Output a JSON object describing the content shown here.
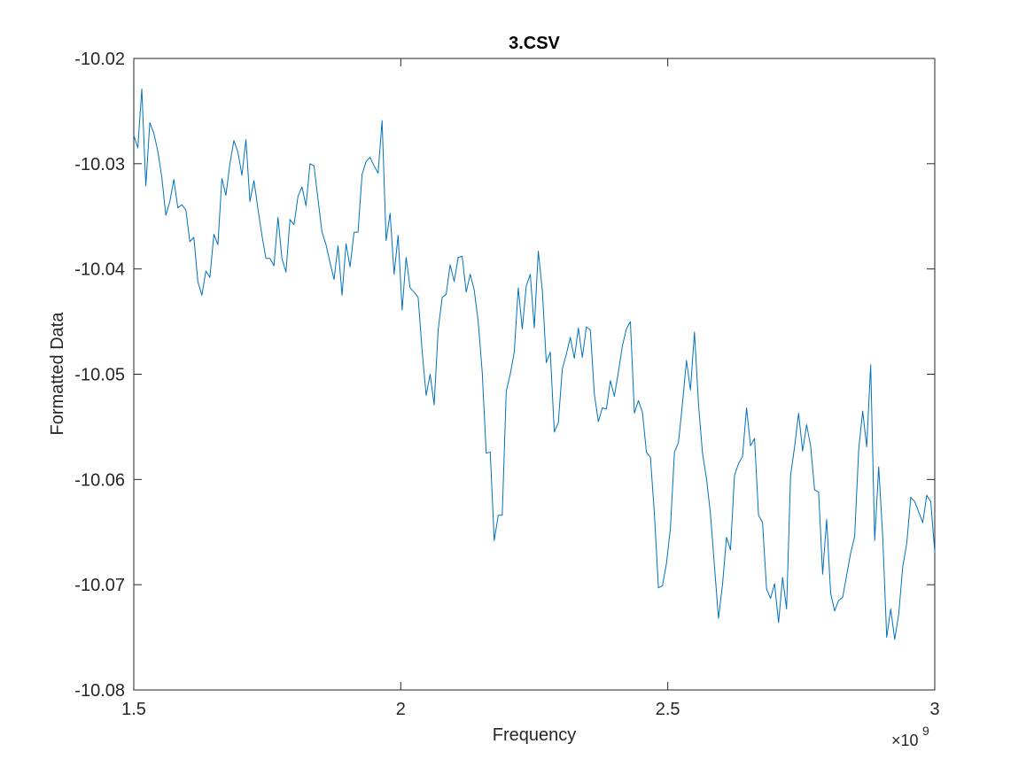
{
  "chart_data": {
    "type": "line",
    "title": "3.CSV",
    "xlabel": "Frequency",
    "ylabel": "Formatted Data",
    "x_multiplier": {
      "base": "×10",
      "exponent": "9"
    },
    "color": "#0072bd",
    "xlim": [
      1500000000,
      3000000000
    ],
    "xticks": [
      {
        "value": 1500000000,
        "label": "1.5"
      },
      {
        "value": 2000000000,
        "label": "2"
      },
      {
        "value": 2500000000,
        "label": "2.5"
      },
      {
        "value": 3000000000,
        "label": "3"
      }
    ],
    "ylim": [
      -10.08,
      -10.02
    ],
    "yticks": [
      -10.08,
      -10.07,
      -10.06,
      -10.05,
      -10.04,
      -10.03,
      -10.02
    ],
    "x": [
      1500000000,
      1507500000,
      1515000000,
      1522500000,
      1530000000,
      1537500000,
      1545000000,
      1552500000,
      1560000000,
      1567500000,
      1575000000,
      1582500000,
      1590000000,
      1597500000,
      1605000000,
      1612500000,
      1620000000,
      1627500000,
      1635000000,
      1642500000,
      1650000000,
      1657500000,
      1665000000,
      1672500000,
      1680000000,
      1687500000,
      1695000000,
      1702500000,
      1710000000,
      1717500000,
      1725000000,
      1732500000,
      1740000000,
      1747500000,
      1755000000,
      1762500000,
      1770000000,
      1777500000,
      1785000000,
      1792500000,
      1800000000,
      1807500000,
      1815000000,
      1822500000,
      1830000000,
      1837500000,
      1845000000,
      1852500000,
      1860000000,
      1867500000,
      1875000000,
      1882500000,
      1890000000,
      1897500000,
      1905000000,
      1912500000,
      1920000000,
      1927500000,
      1935000000,
      1942500000,
      1950000000,
      1957500000,
      1965000000,
      1972500000,
      1980000000,
      1987500000,
      1995000000,
      2002500000,
      2010000000,
      2017500000,
      2025000000,
      2032500000,
      2040000000,
      2047500000,
      2055000000,
      2062500000,
      2070000000,
      2077500000,
      2085000000,
      2092500000,
      2100000000,
      2107500000,
      2115000000,
      2122500000,
      2130000000,
      2137500000,
      2145000000,
      2152500000,
      2160000000,
      2167500000,
      2175000000,
      2182500000,
      2190000000,
      2197500000,
      2205000000,
      2212500000,
      2220000000,
      2227500000,
      2235000000,
      2242500000,
      2250000000,
      2257500000,
      2265000000,
      2272500000,
      2280000000,
      2287500000,
      2295000000,
      2302500000,
      2310000000,
      2317500000,
      2325000000,
      2332500000,
      2340000000,
      2347500000,
      2355000000,
      2362500000,
      2370000000,
      2377500000,
      2385000000,
      2392500000,
      2400000000,
      2407500000,
      2415000000,
      2422500000,
      2430000000,
      2437500000,
      2445000000,
      2452500000,
      2460000000,
      2467500000,
      2475000000,
      2482500000,
      2490000000,
      2497500000,
      2505000000,
      2512500000,
      2520000000,
      2527500000,
      2535000000,
      2542500000,
      2550000000,
      2557500000,
      2565000000,
      2572500000,
      2580000000,
      2587500000,
      2595000000,
      2602500000,
      2610000000,
      2617500000,
      2625000000,
      2632500000,
      2640000000,
      2647500000,
      2655000000,
      2662500000,
      2670000000,
      2677500000,
      2685000000,
      2692500000,
      2700000000,
      2707500000,
      2715000000,
      2722500000,
      2730000000,
      2737500000,
      2745000000,
      2752500000,
      2760000000,
      2767500000,
      2775000000,
      2782500000,
      2790000000,
      2797500000,
      2805000000,
      2812500000,
      2820000000,
      2827500000,
      2835000000,
      2842500000,
      2850000000,
      2857500000,
      2865000000,
      2872500000,
      2880000000,
      2887500000,
      2895000000,
      2902500000,
      2910000000,
      2917500000,
      2925000000,
      2932500000,
      2940000000,
      2947500000,
      2955000000,
      2962500000,
      2970000000,
      2977500000,
      2985000000,
      2992500000,
      3000000000
    ],
    "values": [
      -10.0273,
      -10.0285,
      -10.0229,
      -10.0321,
      -10.0261,
      -10.0271,
      -10.0288,
      -10.0313,
      -10.0349,
      -10.0336,
      -10.0315,
      -10.0342,
      -10.0339,
      -10.0344,
      -10.0374,
      -10.037,
      -10.0412,
      -10.0425,
      -10.0402,
      -10.0408,
      -10.0367,
      -10.0377,
      -10.0314,
      -10.033,
      -10.03,
      -10.0278,
      -10.0289,
      -10.0311,
      -10.0277,
      -10.0336,
      -10.0316,
      -10.0343,
      -10.0368,
      -10.039,
      -10.039,
      -10.0397,
      -10.0351,
      -10.039,
      -10.0403,
      -10.0353,
      -10.0358,
      -10.0331,
      -10.0322,
      -10.034,
      -10.03,
      -10.0302,
      -10.0334,
      -10.0365,
      -10.0377,
      -10.0394,
      -10.041,
      -10.0378,
      -10.0425,
      -10.0376,
      -10.0398,
      -10.0365,
      -10.0365,
      -10.031,
      -10.0298,
      -10.0294,
      -10.0302,
      -10.0309,
      -10.0259,
      -10.0373,
      -10.0347,
      -10.0405,
      -10.0368,
      -10.0439,
      -10.0389,
      -10.0418,
      -10.0422,
      -10.0427,
      -10.0478,
      -10.052,
      -10.05,
      -10.0529,
      -10.0458,
      -10.0427,
      -10.0424,
      -10.0396,
      -10.0412,
      -10.0389,
      -10.0388,
      -10.0422,
      -10.0405,
      -10.042,
      -10.045,
      -10.0498,
      -10.0575,
      -10.0574,
      -10.0658,
      -10.0634,
      -10.0634,
      -10.0516,
      -10.05,
      -10.0479,
      -10.0418,
      -10.0457,
      -10.0416,
      -10.0405,
      -10.0456,
      -10.0383,
      -10.042,
      -10.0489,
      -10.0479,
      -10.0555,
      -10.0546,
      -10.0495,
      -10.0481,
      -10.0465,
      -10.0485,
      -10.0456,
      -10.0484,
      -10.0455,
      -10.0458,
      -10.0519,
      -10.0545,
      -10.0532,
      -10.0533,
      -10.0506,
      -10.0521,
      -10.0498,
      -10.0473,
      -10.0457,
      -10.045,
      -10.0537,
      -10.0525,
      -10.0536,
      -10.0574,
      -10.0579,
      -10.0633,
      -10.0703,
      -10.0701,
      -10.068,
      -10.0646,
      -10.0574,
      -10.0565,
      -10.0528,
      -10.0487,
      -10.0515,
      -10.046,
      -10.0528,
      -10.0575,
      -10.0599,
      -10.0633,
      -10.0683,
      -10.0732,
      -10.07,
      -10.0655,
      -10.0667,
      -10.0596,
      -10.0585,
      -10.0578,
      -10.0532,
      -10.0568,
      -10.0561,
      -10.0634,
      -10.0641,
      -10.0704,
      -10.0713,
      -10.0699,
      -10.0736,
      -10.0693,
      -10.0723,
      -10.0596,
      -10.0569,
      -10.0537,
      -10.0573,
      -10.0548,
      -10.0568,
      -10.061,
      -10.0612,
      -10.069,
      -10.0638,
      -10.0708,
      -10.0725,
      -10.0715,
      -10.0712,
      -10.0691,
      -10.067,
      -10.0654,
      -10.0572,
      -10.0535,
      -10.0569,
      -10.0491,
      -10.0658,
      -10.0588,
      -10.0654,
      -10.075,
      -10.0723,
      -10.0752,
      -10.0728,
      -10.0683,
      -10.0661,
      -10.0617,
      -10.0621,
      -10.0631,
      -10.0641,
      -10.0615,
      -10.0621,
      -10.0669
    ]
  }
}
